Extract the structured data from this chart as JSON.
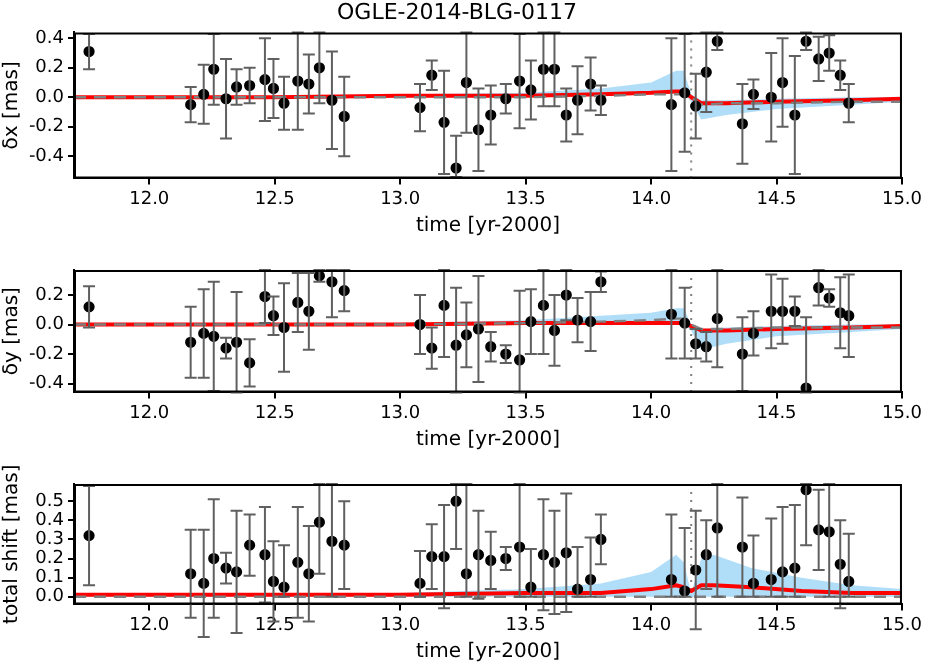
{
  "chart_data": [
    {
      "type": "scatter",
      "title": "OGLE-2014-BLG-0117",
      "xlabel": "time [yr-2000]",
      "ylabel": "δx [mas]",
      "grid": false,
      "legend": false,
      "xlim": [
        11.7,
        15.0
      ],
      "xticks": [
        {
          "value": 12,
          "label": "12.0"
        },
        {
          "value": 12.5,
          "label": "12.5"
        },
        {
          "value": 13,
          "label": "13.0"
        },
        {
          "value": 13.5,
          "label": "13.5"
        },
        {
          "value": 14,
          "label": "14.0"
        },
        {
          "value": 14.5,
          "label": "14.5"
        },
        {
          "value": 15,
          "label": "15.0"
        }
      ],
      "ylim": [
        -0.55,
        0.44
      ],
      "yticks": [
        {
          "value": -0.4,
          "label": "-0.4"
        },
        {
          "value": -0.2,
          "label": "-0.2"
        },
        {
          "value": 0,
          "label": "0.0"
        },
        {
          "value": 0.2,
          "label": "0.2"
        },
        {
          "value": 0.4,
          "label": "0.4"
        }
      ],
      "ref_lines": [
        {
          "axis": "x",
          "value": 14.16,
          "color": "#808080",
          "line_style": "dotted"
        }
      ],
      "series": [
        {
          "color": "#000000",
          "marker": "circle",
          "x": [
            11.76,
            12.165,
            12.217,
            12.257,
            12.306,
            12.348,
            12.4,
            12.461,
            12.495,
            12.537,
            12.592,
            12.636,
            12.678,
            12.728,
            12.777,
            13.079,
            13.126,
            13.175,
            13.223,
            13.264,
            13.312,
            13.361,
            13.421,
            13.476,
            13.521,
            13.571,
            13.615,
            13.662,
            13.707,
            13.759,
            13.8,
            14.081,
            14.134,
            14.178,
            14.22,
            14.264,
            14.364,
            14.408,
            14.479,
            14.524,
            14.573,
            14.618,
            14.668,
            14.71,
            14.754,
            14.788
          ],
          "values": [
            0.31,
            -0.05,
            0.02,
            0.19,
            -0.01,
            0.07,
            0.08,
            0.12,
            0.06,
            -0.04,
            0.11,
            0.09,
            0.2,
            -0.02,
            -0.13,
            -0.07,
            0.15,
            -0.17,
            -0.48,
            0.1,
            -0.22,
            -0.12,
            -0.01,
            0.11,
            0.05,
            0.19,
            0.19,
            -0.12,
            -0.02,
            0.09,
            -0.02,
            -0.05,
            0.03,
            -0.06,
            0.17,
            0.38,
            -0.18,
            0.02,
            0.0,
            0.1,
            -0.12,
            0.38,
            0.26,
            0.3,
            0.15,
            -0.04
          ],
          "errors": [
            0.12,
            0.12,
            0.2,
            0.24,
            0.27,
            0.12,
            0.12,
            0.28,
            0.2,
            0.18,
            0.33,
            0.2,
            0.24,
            0.33,
            0.27,
            0.16,
            0.1,
            0.35,
            [
              -0.54,
              -0.26
            ],
            0.34,
            0.28,
            0.2,
            0.1,
            0.32,
            0.2,
            0.25,
            0.25,
            0.18,
            0.23,
            0.18,
            0.1,
            0.45,
            0.4,
            0.22,
            0.27,
            0.06,
            0.27,
            0.1,
            0.3,
            0.3,
            0.4,
            0.06,
            0.15,
            0.12,
            0.1,
            0.13
          ]
        },
        {
          "type": "line",
          "color": "#808080",
          "line_style": "dashed",
          "marker": "none",
          "x": [
            11.7,
            12.5,
            13.0,
            13.5,
            13.8,
            14.0,
            14.1,
            14.13,
            14.16,
            14.2,
            14.3,
            14.5,
            14.8,
            15.0
          ],
          "values": [
            0,
            0,
            0,
            0,
            0.01,
            0.02,
            0.02,
            0.02,
            0,
            -0.05,
            -0.04,
            -0.04,
            -0.03,
            -0.03
          ]
        },
        {
          "type": "line",
          "color": "#ff0000",
          "line_style": "solid",
          "marker": "none",
          "x": [
            11.7,
            12.5,
            13.0,
            13.5,
            13.8,
            14.0,
            14.1,
            14.13,
            14.16,
            14.2,
            14.3,
            14.5,
            14.8,
            15.0
          ],
          "values": [
            0,
            0,
            0.01,
            0.01,
            0.02,
            0.03,
            0.04,
            0.04,
            0.0,
            -0.04,
            -0.04,
            -0.03,
            -0.02,
            -0.01
          ],
          "upper": [
            0,
            0.01,
            0.02,
            0.03,
            0.06,
            0.1,
            0.18,
            0.18,
            0.02,
            -0.02,
            -0.02,
            -0.01,
            0.0,
            0.0
          ],
          "lower": [
            0,
            0,
            0,
            0,
            0.01,
            0.02,
            0.03,
            0.03,
            -0.03,
            -0.15,
            -0.12,
            -0.08,
            -0.05,
            -0.03
          ]
        }
      ]
    },
    {
      "type": "scatter",
      "xlabel": "time [yr-2000]",
      "ylabel": "δy [mas]",
      "grid": false,
      "legend": false,
      "xlim": [
        11.7,
        15.0
      ],
      "xticks": [
        {
          "value": 12,
          "label": "12.0"
        },
        {
          "value": 12.5,
          "label": "12.5"
        },
        {
          "value": 13,
          "label": "13.0"
        },
        {
          "value": 13.5,
          "label": "13.5"
        },
        {
          "value": 14,
          "label": "14.0"
        },
        {
          "value": 14.5,
          "label": "14.5"
        },
        {
          "value": 15,
          "label": "15.0"
        }
      ],
      "ylim": [
        -0.46,
        0.37
      ],
      "yticks": [
        {
          "value": -0.4,
          "label": "-0.4"
        },
        {
          "value": -0.2,
          "label": "-0.2"
        },
        {
          "value": 0,
          "label": "0.0"
        },
        {
          "value": 0.2,
          "label": "0.2"
        }
      ],
      "ref_lines": [
        {
          "axis": "x",
          "value": 14.16,
          "color": "#808080",
          "line_style": "dotted"
        }
      ],
      "series": [
        {
          "color": "#000000",
          "marker": "circle",
          "x": [
            11.76,
            12.165,
            12.217,
            12.257,
            12.306,
            12.348,
            12.4,
            12.461,
            12.495,
            12.537,
            12.592,
            12.636,
            12.678,
            12.728,
            12.777,
            13.079,
            13.126,
            13.175,
            13.223,
            13.264,
            13.312,
            13.361,
            13.421,
            13.476,
            13.521,
            13.571,
            13.615,
            13.662,
            13.707,
            13.759,
            13.8,
            14.081,
            14.134,
            14.178,
            14.22,
            14.264,
            14.364,
            14.408,
            14.479,
            14.524,
            14.573,
            14.618,
            14.668,
            14.71,
            14.754,
            14.788
          ],
          "values": [
            0.12,
            -0.12,
            -0.06,
            -0.08,
            -0.16,
            -0.12,
            -0.26,
            0.19,
            0.06,
            -0.02,
            0.15,
            0.09,
            0.33,
            0.29,
            0.23,
            0.0,
            -0.16,
            0.13,
            -0.14,
            -0.07,
            -0.03,
            -0.15,
            -0.2,
            -0.24,
            0.02,
            0.13,
            -0.04,
            0.2,
            0.03,
            0.02,
            0.29,
            0.07,
            0.01,
            -0.13,
            -0.15,
            0.04,
            -0.2,
            -0.06,
            0.09,
            0.09,
            0.09,
            -0.43,
            0.25,
            0.18,
            0.08,
            0.06
          ],
          "errors": [
            0.14,
            0.24,
            0.3,
            0.37,
            0.07,
            0.34,
            0.16,
            0.18,
            0.13,
            0.3,
            0.2,
            0.26,
            0.04,
            [
              0.05,
              0.37
            ],
            0.14,
            0.2,
            0.14,
            [
              -0.22,
              0.37
            ],
            [
              -0.46,
              0.25
            ],
            0.22,
            0.36,
            0.1,
            0.06,
            [
              -0.46,
              0.23
            ],
            0.22,
            [
              -0.2,
              0.37
            ],
            0.24,
            0.17,
            0.15,
            0.2,
            0.07,
            0.3,
            0.24,
            0.1,
            0.1,
            0.33,
            0.25,
            0.15,
            0.25,
            0.22,
            0.1,
            [
              -0.46,
              0.05
            ],
            0.12,
            0.06,
            0.24,
            0.28
          ]
        },
        {
          "type": "line",
          "color": "#808080",
          "line_style": "dashed",
          "marker": "none",
          "x": [
            11.7,
            12.5,
            13.0,
            13.5,
            13.8,
            14.0,
            14.1,
            14.13,
            14.16,
            14.2,
            14.3,
            14.5,
            14.8,
            15.0
          ],
          "values": [
            0,
            0,
            0,
            0.01,
            0.02,
            0.03,
            0.04,
            0.04,
            0,
            -0.03,
            -0.03,
            -0.02,
            -0.02,
            -0.02
          ]
        },
        {
          "type": "line",
          "color": "#ff0000",
          "line_style": "solid",
          "marker": "none",
          "x": [
            11.7,
            12.5,
            13.0,
            13.5,
            13.8,
            14.0,
            14.1,
            14.13,
            14.16,
            14.2,
            14.3,
            14.5,
            14.8,
            15.0
          ],
          "values": [
            0,
            0,
            0,
            0.01,
            0.01,
            0.01,
            0.01,
            0.01,
            -0.01,
            -0.04,
            -0.04,
            -0.03,
            -0.02,
            -0.01
          ],
          "upper": [
            0,
            0,
            0.01,
            0.03,
            0.06,
            0.08,
            0.11,
            0.11,
            0.0,
            -0.03,
            -0.02,
            -0.01,
            0,
            0
          ],
          "lower": [
            0,
            0,
            0,
            0,
            0,
            0,
            0,
            0,
            -0.04,
            -0.17,
            -0.13,
            -0.08,
            -0.05,
            -0.03
          ]
        }
      ]
    },
    {
      "type": "scatter",
      "xlabel": "time [yr-2000]",
      "ylabel": "total shift [mas]",
      "grid": false,
      "legend": false,
      "xlim": [
        11.7,
        15.0
      ],
      "xticks": [
        {
          "value": 12,
          "label": "12.0"
        },
        {
          "value": 12.5,
          "label": "12.5"
        },
        {
          "value": 13,
          "label": "13.0"
        },
        {
          "value": 13.5,
          "label": "13.5"
        },
        {
          "value": 14,
          "label": "14.0"
        },
        {
          "value": 14.5,
          "label": "14.5"
        },
        {
          "value": 15,
          "label": "15.0"
        }
      ],
      "ylim": [
        -0.04,
        0.59
      ],
      "yticks": [
        {
          "value": 0,
          "label": "0.0"
        },
        0.1,
        0.2,
        0.3,
        0.4,
        0.5
      ],
      "ref_lines": [
        {
          "axis": "x",
          "value": 14.16,
          "color": "#808080",
          "line_style": "dotted"
        }
      ],
      "series": [
        {
          "color": "#000000",
          "marker": "circle",
          "x": [
            11.76,
            12.165,
            12.217,
            12.257,
            12.306,
            12.348,
            12.4,
            12.461,
            12.495,
            12.537,
            12.592,
            12.636,
            12.678,
            12.728,
            12.777,
            13.079,
            13.126,
            13.175,
            13.223,
            13.264,
            13.312,
            13.361,
            13.421,
            13.476,
            13.521,
            13.571,
            13.615,
            13.662,
            13.707,
            13.759,
            13.8,
            14.081,
            14.134,
            14.178,
            14.22,
            14.264,
            14.364,
            14.408,
            14.479,
            14.524,
            14.573,
            14.618,
            14.668,
            14.71,
            14.754,
            14.788
          ],
          "values": [
            0.32,
            0.12,
            0.07,
            0.2,
            0.15,
            0.13,
            0.27,
            0.22,
            0.08,
            0.05,
            0.18,
            0.12,
            0.39,
            0.29,
            0.27,
            0.07,
            0.21,
            0.21,
            0.5,
            0.12,
            0.22,
            0.19,
            0.2,
            0.26,
            0.05,
            0.22,
            0.18,
            0.23,
            0.04,
            0.09,
            0.3,
            0.09,
            0.03,
            0.14,
            0.22,
            0.36,
            0.26,
            0.07,
            0.09,
            0.13,
            0.15,
            0.56,
            0.35,
            0.34,
            0.17,
            0.08
          ],
          "errors": [
            0.26,
            0.23,
            0.28,
            0.31,
            0.08,
            0.32,
            0.16,
            0.25,
            0.21,
            [
              0.0,
              0.27
            ],
            0.29,
            0.25,
            [
              0.12,
              0.59
            ],
            [
              0.0,
              0.59
            ],
            0.23,
            [
              0.0,
              0.24
            ],
            0.17,
            0.27,
            [
              0.25,
              0.59
            ],
            [
              0.0,
              0.59
            ],
            0.23,
            0.15,
            0.06,
            [
              0.0,
              0.59
            ],
            [
              0.0,
              0.25
            ],
            0.29,
            0.27,
            0.31,
            [
              0.0,
              0.26
            ],
            [
              0.0,
              0.31
            ],
            0.13,
            [
              0.0,
              0.43
            ],
            [
              0.0,
              0.36
            ],
            0.31,
            0.18,
            [
              0.0,
              0.59
            ],
            0.26,
            [
              0.0,
              0.32
            ],
            [
              0.0,
              0.41
            ],
            [
              0.0,
              0.47
            ],
            [
              0.0,
              0.48
            ],
            [
              0.27,
              0.59
            ],
            0.21,
            [
              0.0,
              0.59
            ],
            0.23,
            [
              0.0,
              0.33
            ]
          ]
        },
        {
          "type": "line",
          "color": "#808080",
          "line_style": "dashed",
          "marker": "none",
          "x": [
            11.7,
            15.0
          ],
          "values": [
            0,
            0
          ]
        },
        {
          "type": "line",
          "color": "#ff0000",
          "line_style": "solid",
          "marker": "none",
          "x": [
            11.7,
            12.5,
            13.0,
            13.5,
            13.8,
            14.0,
            14.1,
            14.13,
            14.16,
            14.2,
            14.25,
            14.4,
            14.6,
            14.8,
            15.0
          ],
          "values": [
            0.01,
            0.01,
            0.01,
            0.02,
            0.02,
            0.04,
            0.06,
            0.05,
            0.03,
            0.06,
            0.06,
            0.05,
            0.03,
            0.02,
            0.02
          ],
          "upper": [
            0.01,
            0.01,
            0.02,
            0.04,
            0.07,
            0.13,
            0.22,
            0.18,
            0.02,
            0.2,
            0.22,
            0.15,
            0.1,
            0.06,
            0.04
          ],
          "lower": [
            0,
            0,
            0,
            0,
            0,
            0,
            0,
            0,
            0,
            0,
            0,
            0,
            0,
            0,
            0
          ]
        }
      ]
    }
  ]
}
